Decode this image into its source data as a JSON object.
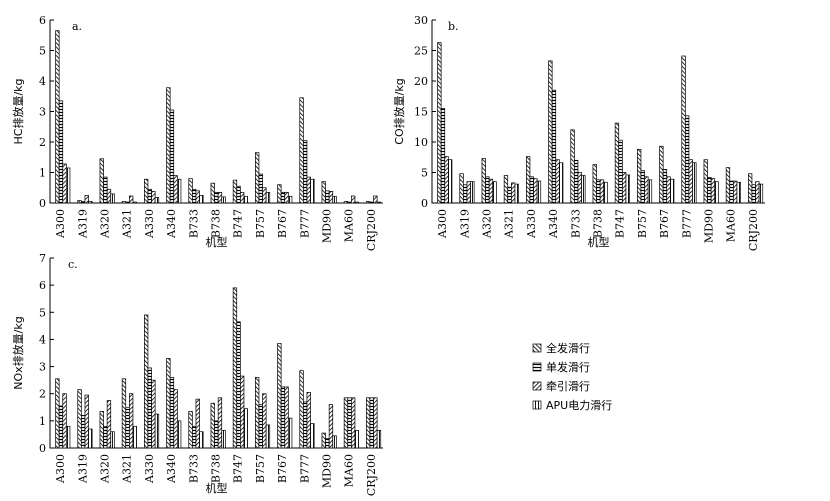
{
  "legend": [
    {
      "name": "全发滑行",
      "pattern": "diag-back"
    },
    {
      "name": "单发滑行",
      "pattern": "horiz"
    },
    {
      "name": "牵引滑行",
      "pattern": "diag-fwd"
    },
    {
      "name": "APU电力滑行",
      "pattern": "vert"
    }
  ],
  "chart_data": [
    {
      "type": "bar",
      "panel_label": "a.",
      "xlabel": "机型",
      "ylabel": "HC排放量/kg",
      "ylim": [
        0,
        6
      ],
      "yticks": [
        0,
        1,
        2,
        3,
        4,
        5,
        6
      ],
      "categories": [
        "A300",
        "A319",
        "A320",
        "A321",
        "A330",
        "A340",
        "B733",
        "B738",
        "B747",
        "B757",
        "B767",
        "B777",
        "MD90",
        "MA60",
        "CRJ200"
      ],
      "series": [
        {
          "name": "全发滑行",
          "values": [
            5.65,
            0.08,
            1.45,
            0.05,
            0.78,
            3.78,
            0.8,
            0.65,
            0.75,
            1.65,
            0.6,
            3.45,
            0.7,
            0.05,
            0.05
          ]
        },
        {
          "name": "单发滑行",
          "values": [
            3.35,
            0.05,
            0.85,
            0.03,
            0.45,
            3.05,
            0.45,
            0.35,
            0.55,
            0.95,
            0.35,
            2.05,
            0.4,
            0.03,
            0.03
          ]
        },
        {
          "name": "牵引滑行",
          "values": [
            1.28,
            0.25,
            0.45,
            0.23,
            0.38,
            0.9,
            0.4,
            0.35,
            0.35,
            0.5,
            0.35,
            0.85,
            0.38,
            0.23,
            0.23
          ]
        },
        {
          "name": "APU电力滑行",
          "values": [
            1.15,
            0.05,
            0.3,
            0.03,
            0.18,
            0.78,
            0.25,
            0.2,
            0.22,
            0.35,
            0.22,
            0.78,
            0.22,
            0.03,
            0.03
          ]
        }
      ]
    },
    {
      "type": "bar",
      "panel_label": "b.",
      "xlabel": "机型",
      "ylabel": "CO排放量/kg",
      "ylim": [
        0,
        30
      ],
      "yticks": [
        0,
        5,
        10,
        15,
        20,
        25,
        30
      ],
      "categories": [
        "A300",
        "A319",
        "A320",
        "A321",
        "A330",
        "A340",
        "B733",
        "B738",
        "B747",
        "B757",
        "B767",
        "B777",
        "MD90",
        "MA60",
        "CRJ200"
      ],
      "series": [
        {
          "name": "全发滑行",
          "values": [
            26.3,
            4.8,
            7.3,
            4.5,
            7.6,
            23.3,
            12.0,
            6.3,
            13.1,
            8.8,
            9.3,
            24.1,
            7.1,
            5.8,
            4.8
          ]
        },
        {
          "name": "单发滑行",
          "values": [
            15.5,
            3.0,
            4.3,
            2.6,
            4.3,
            18.5,
            7.0,
            3.8,
            10.3,
            5.3,
            5.5,
            14.3,
            4.2,
            3.6,
            3.0
          ]
        },
        {
          "name": "牵引滑行",
          "values": [
            7.6,
            3.5,
            3.9,
            3.3,
            4.0,
            7.1,
            5.0,
            3.8,
            5.0,
            4.3,
            4.3,
            7.1,
            4.0,
            3.6,
            3.5
          ]
        },
        {
          "name": "APU电力滑行",
          "values": [
            7.1,
            3.5,
            3.5,
            3.1,
            3.6,
            6.6,
            4.5,
            3.4,
            4.6,
            3.8,
            3.9,
            6.6,
            3.5,
            3.4,
            3.1
          ]
        }
      ]
    },
    {
      "type": "bar",
      "panel_label": "c.",
      "xlabel": "机型",
      "ylabel": "NOx排放量/kg",
      "ylim": [
        0,
        7
      ],
      "yticks": [
        0,
        1,
        2,
        3,
        4,
        5,
        6,
        7
      ],
      "categories": [
        "A300",
        "A319",
        "A320",
        "A321",
        "A330",
        "A340",
        "B733",
        "B738",
        "B747",
        "B757",
        "B767",
        "B777",
        "MD90",
        "MA60",
        "CRJ200"
      ],
      "series": [
        {
          "name": "全发滑行",
          "values": [
            2.55,
            2.15,
            1.35,
            2.55,
            4.9,
            3.3,
            1.35,
            1.65,
            5.9,
            2.6,
            3.85,
            2.85,
            0.55,
            1.85,
            1.85
          ]
        },
        {
          "name": "单发滑行",
          "values": [
            1.55,
            1.2,
            0.8,
            1.5,
            2.95,
            2.6,
            0.8,
            1.0,
            4.65,
            1.6,
            2.25,
            1.7,
            0.35,
            1.85,
            1.85
          ]
        },
        {
          "name": "牵引滑行",
          "values": [
            2.0,
            1.95,
            1.75,
            2.0,
            2.5,
            2.15,
            1.8,
            1.85,
            2.65,
            2.0,
            2.25,
            2.05,
            1.6,
            1.85,
            1.85
          ]
        },
        {
          "name": "APU电力滑行",
          "values": [
            0.8,
            0.7,
            0.6,
            0.8,
            1.25,
            1.0,
            0.6,
            0.65,
            1.45,
            0.85,
            1.1,
            0.9,
            0.45,
            0.65,
            0.65
          ]
        }
      ]
    }
  ]
}
